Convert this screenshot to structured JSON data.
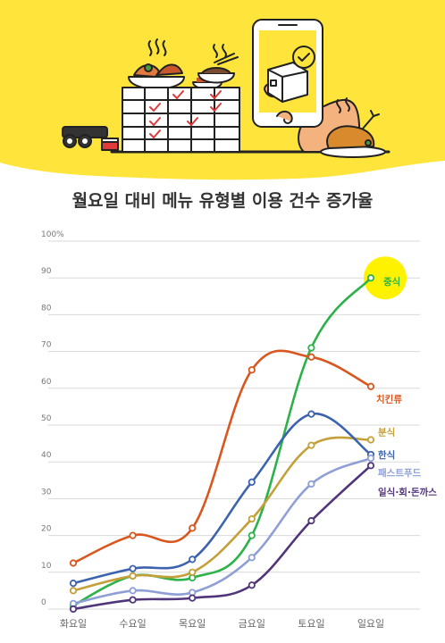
{
  "colors": {
    "banner": "#FFE53B",
    "grid": "#D9D9D9",
    "axis_text": "#777777",
    "title": "#333333"
  },
  "illustration": {
    "icons": [
      "food-dishes-icon",
      "calendar-icon",
      "smartphone-icon",
      "delivery-box-icon",
      "roll-food-icon",
      "roast-chicken-icon"
    ]
  },
  "chart_data": {
    "type": "line",
    "title": "월요일 대비 메뉴 유형별 이용 건수 증가율",
    "x": [
      "화요일",
      "수요일",
      "목요일",
      "금요일",
      "토요일",
      "일요일"
    ],
    "ylim": [
      0,
      100
    ],
    "yticks": [
      "0",
      "10",
      "20",
      "30",
      "40",
      "50",
      "60",
      "70",
      "80",
      "90",
      "100%"
    ],
    "grid": true,
    "legend": "line-end labels",
    "series": [
      {
        "name": "중식",
        "color": "#2DB24A",
        "values": [
          1,
          9,
          8.5,
          20,
          71,
          90
        ],
        "highlight": true
      },
      {
        "name": "치킨류",
        "color": "#D9571F",
        "values": [
          12.5,
          20,
          22,
          65,
          68.5,
          60.5
        ]
      },
      {
        "name": "분식",
        "color": "#C4A03A",
        "values": [
          5,
          9,
          10,
          24.5,
          44.5,
          46
        ]
      },
      {
        "name": "한식",
        "color": "#3D62AE",
        "values": [
          7,
          11,
          13.5,
          34.5,
          53,
          42
        ]
      },
      {
        "name": "패스트푸드",
        "color": "#8E9FD6",
        "values": [
          1.5,
          5,
          4.5,
          14,
          34,
          41
        ]
      },
      {
        "name": "일식·회·돈까스",
        "color": "#51357A",
        "values": [
          0,
          2.5,
          3,
          6.5,
          24,
          39
        ]
      }
    ]
  }
}
